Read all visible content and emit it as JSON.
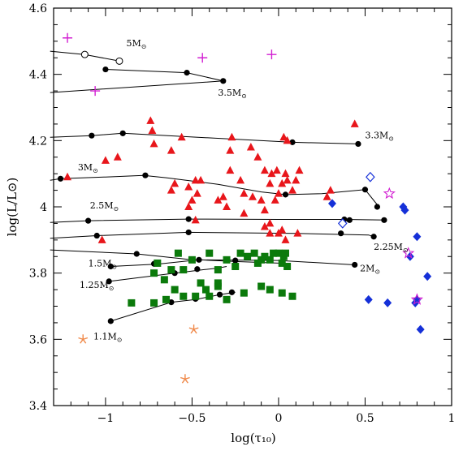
{
  "chart_data": {
    "type": "scatter",
    "xlabel": "log(τ₁₀)",
    "ylabel": "log(L/L⊙)",
    "xlim": [
      -1.3,
      1.0
    ],
    "ylim": [
      3.4,
      4.6
    ],
    "xticks": [
      -1,
      -0.5,
      0,
      0.5,
      1
    ],
    "xtick_labels": [
      "−1",
      "−0.5",
      "0",
      "0.5",
      "1"
    ],
    "yticks": [
      3.4,
      3.6,
      3.8,
      4.0,
      4.2,
      4.4,
      4.6
    ],
    "ytick_labels": [
      "3.4",
      "3.6",
      "3.8",
      "4",
      "4.2",
      "4.4",
      "4.6"
    ],
    "grid": false,
    "colors": {
      "triangle": "#e8161b",
      "square": "#0b7a0b",
      "diamond": "#1530d8",
      "plus": "#d21fd2",
      "star_magenta": "#d21fd2",
      "star_orange": "#f08a4b",
      "track": "#000000"
    },
    "tracks": [
      {
        "mass": "5",
        "label_x": -0.88,
        "label_y": 4.485,
        "points": [
          [
            -1.32,
            4.47
          ],
          [
            -1.12,
            4.46
          ],
          [
            -0.92,
            4.44
          ]
        ],
        "open_markers": [
          [
            -1.12,
            4.46
          ],
          [
            -0.92,
            4.44
          ]
        ],
        "filled_markers": []
      },
      {
        "mass": "3.5",
        "label_x": -0.35,
        "label_y": 4.335,
        "points": [
          [
            -1.32,
            4.345
          ],
          [
            -0.32,
            4.38
          ],
          [
            -0.53,
            4.405
          ],
          [
            -1.0,
            4.415
          ]
        ],
        "open_markers": [],
        "filled_markers": [
          [
            -0.32,
            4.38
          ],
          [
            -0.53,
            4.405
          ],
          [
            -1.0,
            4.415
          ]
        ]
      },
      {
        "mass": "3.3",
        "label_x": 0.5,
        "label_y": 4.207,
        "points": [
          [
            -1.32,
            4.21
          ],
          [
            -1.08,
            4.215
          ],
          [
            -0.9,
            4.222
          ],
          [
            0.08,
            4.195
          ],
          [
            0.46,
            4.19
          ]
        ],
        "open_markers": [],
        "filled_markers": [
          [
            -1.08,
            4.215
          ],
          [
            -0.9,
            4.222
          ],
          [
            0.08,
            4.195
          ],
          [
            0.46,
            4.19
          ]
        ]
      },
      {
        "mass": "3",
        "label_x": -1.16,
        "label_y": 4.11,
        "points": [
          [
            -1.32,
            4.08
          ],
          [
            -1.26,
            4.085
          ],
          [
            -1.0,
            4.09
          ],
          [
            -0.78,
            4.095
          ],
          [
            -0.65,
            4.088
          ],
          [
            -0.35,
            4.068
          ],
          [
            -0.1,
            4.045
          ],
          [
            0.04,
            4.037
          ],
          [
            0.25,
            4.04
          ],
          [
            0.5,
            4.052
          ],
          [
            0.58,
            4.0
          ]
        ],
        "open_markers": [],
        "filled_markers": [
          [
            -1.26,
            4.085
          ],
          [
            -0.77,
            4.095
          ],
          [
            0.04,
            4.037
          ],
          [
            0.5,
            4.052
          ],
          [
            0.57,
            4.0
          ]
        ]
      },
      {
        "mass": "2.5",
        "label_x": -1.09,
        "label_y": 3.995,
        "points": [
          [
            -1.32,
            3.953
          ],
          [
            -1.1,
            3.958
          ],
          [
            -0.52,
            3.963
          ],
          [
            0.0,
            3.962
          ],
          [
            0.38,
            3.962
          ],
          [
            0.62,
            3.96
          ]
        ],
        "open_markers": [],
        "filled_markers": [
          [
            -1.1,
            3.958
          ],
          [
            -0.52,
            3.963
          ],
          [
            0.38,
            3.962
          ],
          [
            0.41,
            3.96
          ],
          [
            0.61,
            3.96
          ]
        ]
      },
      {
        "mass": "2.25",
        "label_x": 0.55,
        "label_y": 3.87,
        "points": [
          [
            -1.32,
            3.905
          ],
          [
            -1.05,
            3.913
          ],
          [
            -0.52,
            3.923
          ],
          [
            0.1,
            3.92
          ],
          [
            0.52,
            3.915
          ],
          [
            0.55,
            3.91
          ]
        ],
        "open_markers": [],
        "filled_markers": [
          [
            -1.05,
            3.913
          ],
          [
            -0.52,
            3.923
          ],
          [
            0.36,
            3.92
          ],
          [
            0.55,
            3.91
          ]
        ]
      },
      {
        "mass": "2",
        "label_x": 0.47,
        "label_y": 3.805,
        "points": [
          [
            -1.32,
            3.87
          ],
          [
            -0.82,
            3.858
          ],
          [
            -0.5,
            3.84
          ],
          [
            0.0,
            3.838
          ],
          [
            0.27,
            3.83
          ],
          [
            0.44,
            3.825
          ]
        ],
        "open_markers": [],
        "filled_markers": [
          [
            -0.82,
            3.858
          ],
          [
            -0.5,
            3.84
          ],
          [
            0.44,
            3.825
          ]
        ]
      },
      {
        "mass": "1.5",
        "label_x": -1.1,
        "label_y": 3.82,
        "points": [
          [
            -0.97,
            3.82
          ],
          [
            -0.7,
            3.827
          ],
          [
            -0.46,
            3.84
          ],
          [
            -0.25,
            3.835
          ],
          [
            0.0,
            3.83
          ]
        ],
        "open_markers": [],
        "filled_markers": [
          [
            -0.97,
            3.82
          ],
          [
            -0.72,
            3.828
          ],
          [
            -0.46,
            3.84
          ],
          [
            -0.25,
            3.838
          ]
        ]
      },
      {
        "mass": "1.25",
        "label_x": -1.15,
        "label_y": 3.755,
        "points": [
          [
            -0.98,
            3.775
          ],
          [
            -0.6,
            3.8
          ],
          [
            -0.44,
            3.81
          ],
          [
            -0.35,
            3.815
          ],
          [
            -0.3,
            3.82
          ]
        ],
        "open_markers": [],
        "filled_markers": [
          [
            -0.98,
            3.775
          ],
          [
            -0.6,
            3.8
          ],
          [
            -0.47,
            3.812
          ]
        ]
      },
      {
        "mass": "1.1",
        "label_x": -1.07,
        "label_y": 3.6,
        "points": [
          [
            -0.97,
            3.655
          ],
          [
            -0.62,
            3.712
          ],
          [
            -0.48,
            3.72
          ],
          [
            -0.34,
            3.735
          ],
          [
            -0.25,
            3.742
          ]
        ],
        "open_markers": [],
        "filled_markers": [
          [
            -0.97,
            3.655
          ],
          [
            -0.62,
            3.712
          ],
          [
            -0.48,
            3.722
          ],
          [
            -0.34,
            3.735
          ],
          [
            -0.27,
            3.742
          ]
        ]
      }
    ],
    "series": [
      {
        "marker": "triangle",
        "color": "#e8161b",
        "points": [
          [
            -1.22,
            4.09
          ],
          [
            -0.74,
            4.26
          ],
          [
            -0.73,
            4.23
          ],
          [
            -0.72,
            4.19
          ],
          [
            -0.62,
            4.17
          ],
          [
            -0.56,
            4.21
          ],
          [
            -0.93,
            4.15
          ],
          [
            -1.0,
            4.14
          ],
          [
            -0.6,
            4.07
          ],
          [
            -0.52,
            4.06
          ],
          [
            -0.47,
            4.04
          ],
          [
            -0.48,
            4.08
          ],
          [
            -0.45,
            4.08
          ],
          [
            -0.27,
            4.21
          ],
          [
            -0.28,
            4.17
          ],
          [
            -0.16,
            4.18
          ],
          [
            -0.12,
            4.15
          ],
          [
            -0.08,
            4.11
          ],
          [
            -0.2,
            4.04
          ],
          [
            -0.15,
            4.03
          ],
          [
            -0.1,
            4.02
          ],
          [
            -0.28,
            4.11
          ],
          [
            -0.22,
            4.08
          ],
          [
            -0.35,
            4.02
          ],
          [
            -0.32,
            4.03
          ],
          [
            -0.5,
            4.02
          ],
          [
            -0.52,
            4.0
          ],
          [
            -0.3,
            4.0
          ],
          [
            -0.2,
            3.98
          ],
          [
            -0.08,
            3.99
          ],
          [
            -0.05,
            4.07
          ],
          [
            -0.02,
            4.02
          ],
          [
            0.0,
            4.04
          ],
          [
            0.02,
            4.07
          ],
          [
            0.04,
            4.1
          ],
          [
            0.05,
            4.08
          ],
          [
            0.08,
            4.05
          ],
          [
            0.1,
            4.08
          ],
          [
            0.12,
            4.11
          ],
          [
            0.03,
            4.21
          ],
          [
            0.05,
            4.2
          ],
          [
            -0.01,
            4.11
          ],
          [
            -0.04,
            4.1
          ],
          [
            0.28,
            4.03
          ],
          [
            0.3,
            4.05
          ],
          [
            0.44,
            4.25
          ],
          [
            -0.05,
            3.95
          ],
          [
            0.0,
            3.92
          ],
          [
            -0.05,
            3.92
          ],
          [
            0.02,
            3.93
          ],
          [
            0.04,
            3.9
          ],
          [
            -0.08,
            3.94
          ],
          [
            0.11,
            3.92
          ],
          [
            -1.02,
            3.9
          ],
          [
            -0.62,
            4.05
          ],
          [
            -0.48,
            3.96
          ]
        ]
      },
      {
        "marker": "square",
        "color": "#0b7a0b",
        "points": [
          [
            -0.58,
            3.86
          ],
          [
            -0.62,
            3.81
          ],
          [
            -0.66,
            3.78
          ],
          [
            -0.72,
            3.8
          ],
          [
            -0.4,
            3.86
          ],
          [
            -0.5,
            3.84
          ],
          [
            -0.3,
            3.84
          ],
          [
            -0.22,
            3.86
          ],
          [
            -0.14,
            3.86
          ],
          [
            -0.1,
            3.84
          ],
          [
            -0.12,
            3.83
          ],
          [
            -0.05,
            3.84
          ],
          [
            -0.03,
            3.86
          ],
          [
            0.0,
            3.86
          ],
          [
            0.03,
            3.85
          ],
          [
            0.04,
            3.86
          ],
          [
            0.02,
            3.83
          ],
          [
            0.05,
            3.82
          ],
          [
            -0.08,
            3.85
          ],
          [
            -0.18,
            3.85
          ],
          [
            -0.25,
            3.82
          ],
          [
            -0.35,
            3.81
          ],
          [
            -0.45,
            3.77
          ],
          [
            -0.35,
            3.76
          ],
          [
            -0.42,
            3.75
          ],
          [
            -0.6,
            3.75
          ],
          [
            -0.65,
            3.72
          ],
          [
            -0.72,
            3.71
          ],
          [
            -0.85,
            3.71
          ],
          [
            -0.55,
            3.73
          ],
          [
            -0.48,
            3.73
          ],
          [
            -0.4,
            3.73
          ],
          [
            -0.3,
            3.72
          ],
          [
            -0.35,
            3.77
          ],
          [
            -0.2,
            3.74
          ],
          [
            -0.1,
            3.76
          ],
          [
            -0.05,
            3.75
          ],
          [
            0.02,
            3.74
          ],
          [
            0.08,
            3.73
          ],
          [
            -0.7,
            3.83
          ],
          [
            -0.55,
            3.81
          ]
        ]
      },
      {
        "marker": "diamond",
        "color": "#1530d8",
        "points": [
          [
            0.31,
            4.01
          ],
          [
            0.72,
            4.0
          ],
          [
            0.73,
            3.99
          ],
          [
            0.76,
            3.85
          ],
          [
            0.8,
            3.91
          ],
          [
            0.86,
            3.79
          ],
          [
            0.52,
            3.72
          ],
          [
            0.63,
            3.71
          ],
          [
            0.79,
            3.71
          ],
          [
            0.82,
            3.63
          ],
          [
            0.8,
            3.72
          ]
        ]
      },
      {
        "marker": "diamond-open",
        "color": "#1530d8",
        "points": [
          [
            0.53,
            4.09
          ],
          [
            0.37,
            3.95
          ]
        ]
      },
      {
        "marker": "plus",
        "color": "#d21fd2",
        "points": [
          [
            -1.22,
            4.51
          ],
          [
            -1.06,
            4.35
          ],
          [
            -0.44,
            4.45
          ],
          [
            -0.04,
            4.46
          ]
        ]
      },
      {
        "marker": "star-open",
        "color": "#d21fd2",
        "points": [
          [
            0.64,
            4.04
          ],
          [
            0.75,
            3.86
          ],
          [
            0.8,
            3.72
          ]
        ]
      },
      {
        "marker": "asterisk",
        "color": "#f08a4b",
        "points": [
          [
            -1.13,
            3.6
          ],
          [
            -0.49,
            3.63
          ],
          [
            -0.54,
            3.48
          ]
        ]
      }
    ]
  }
}
